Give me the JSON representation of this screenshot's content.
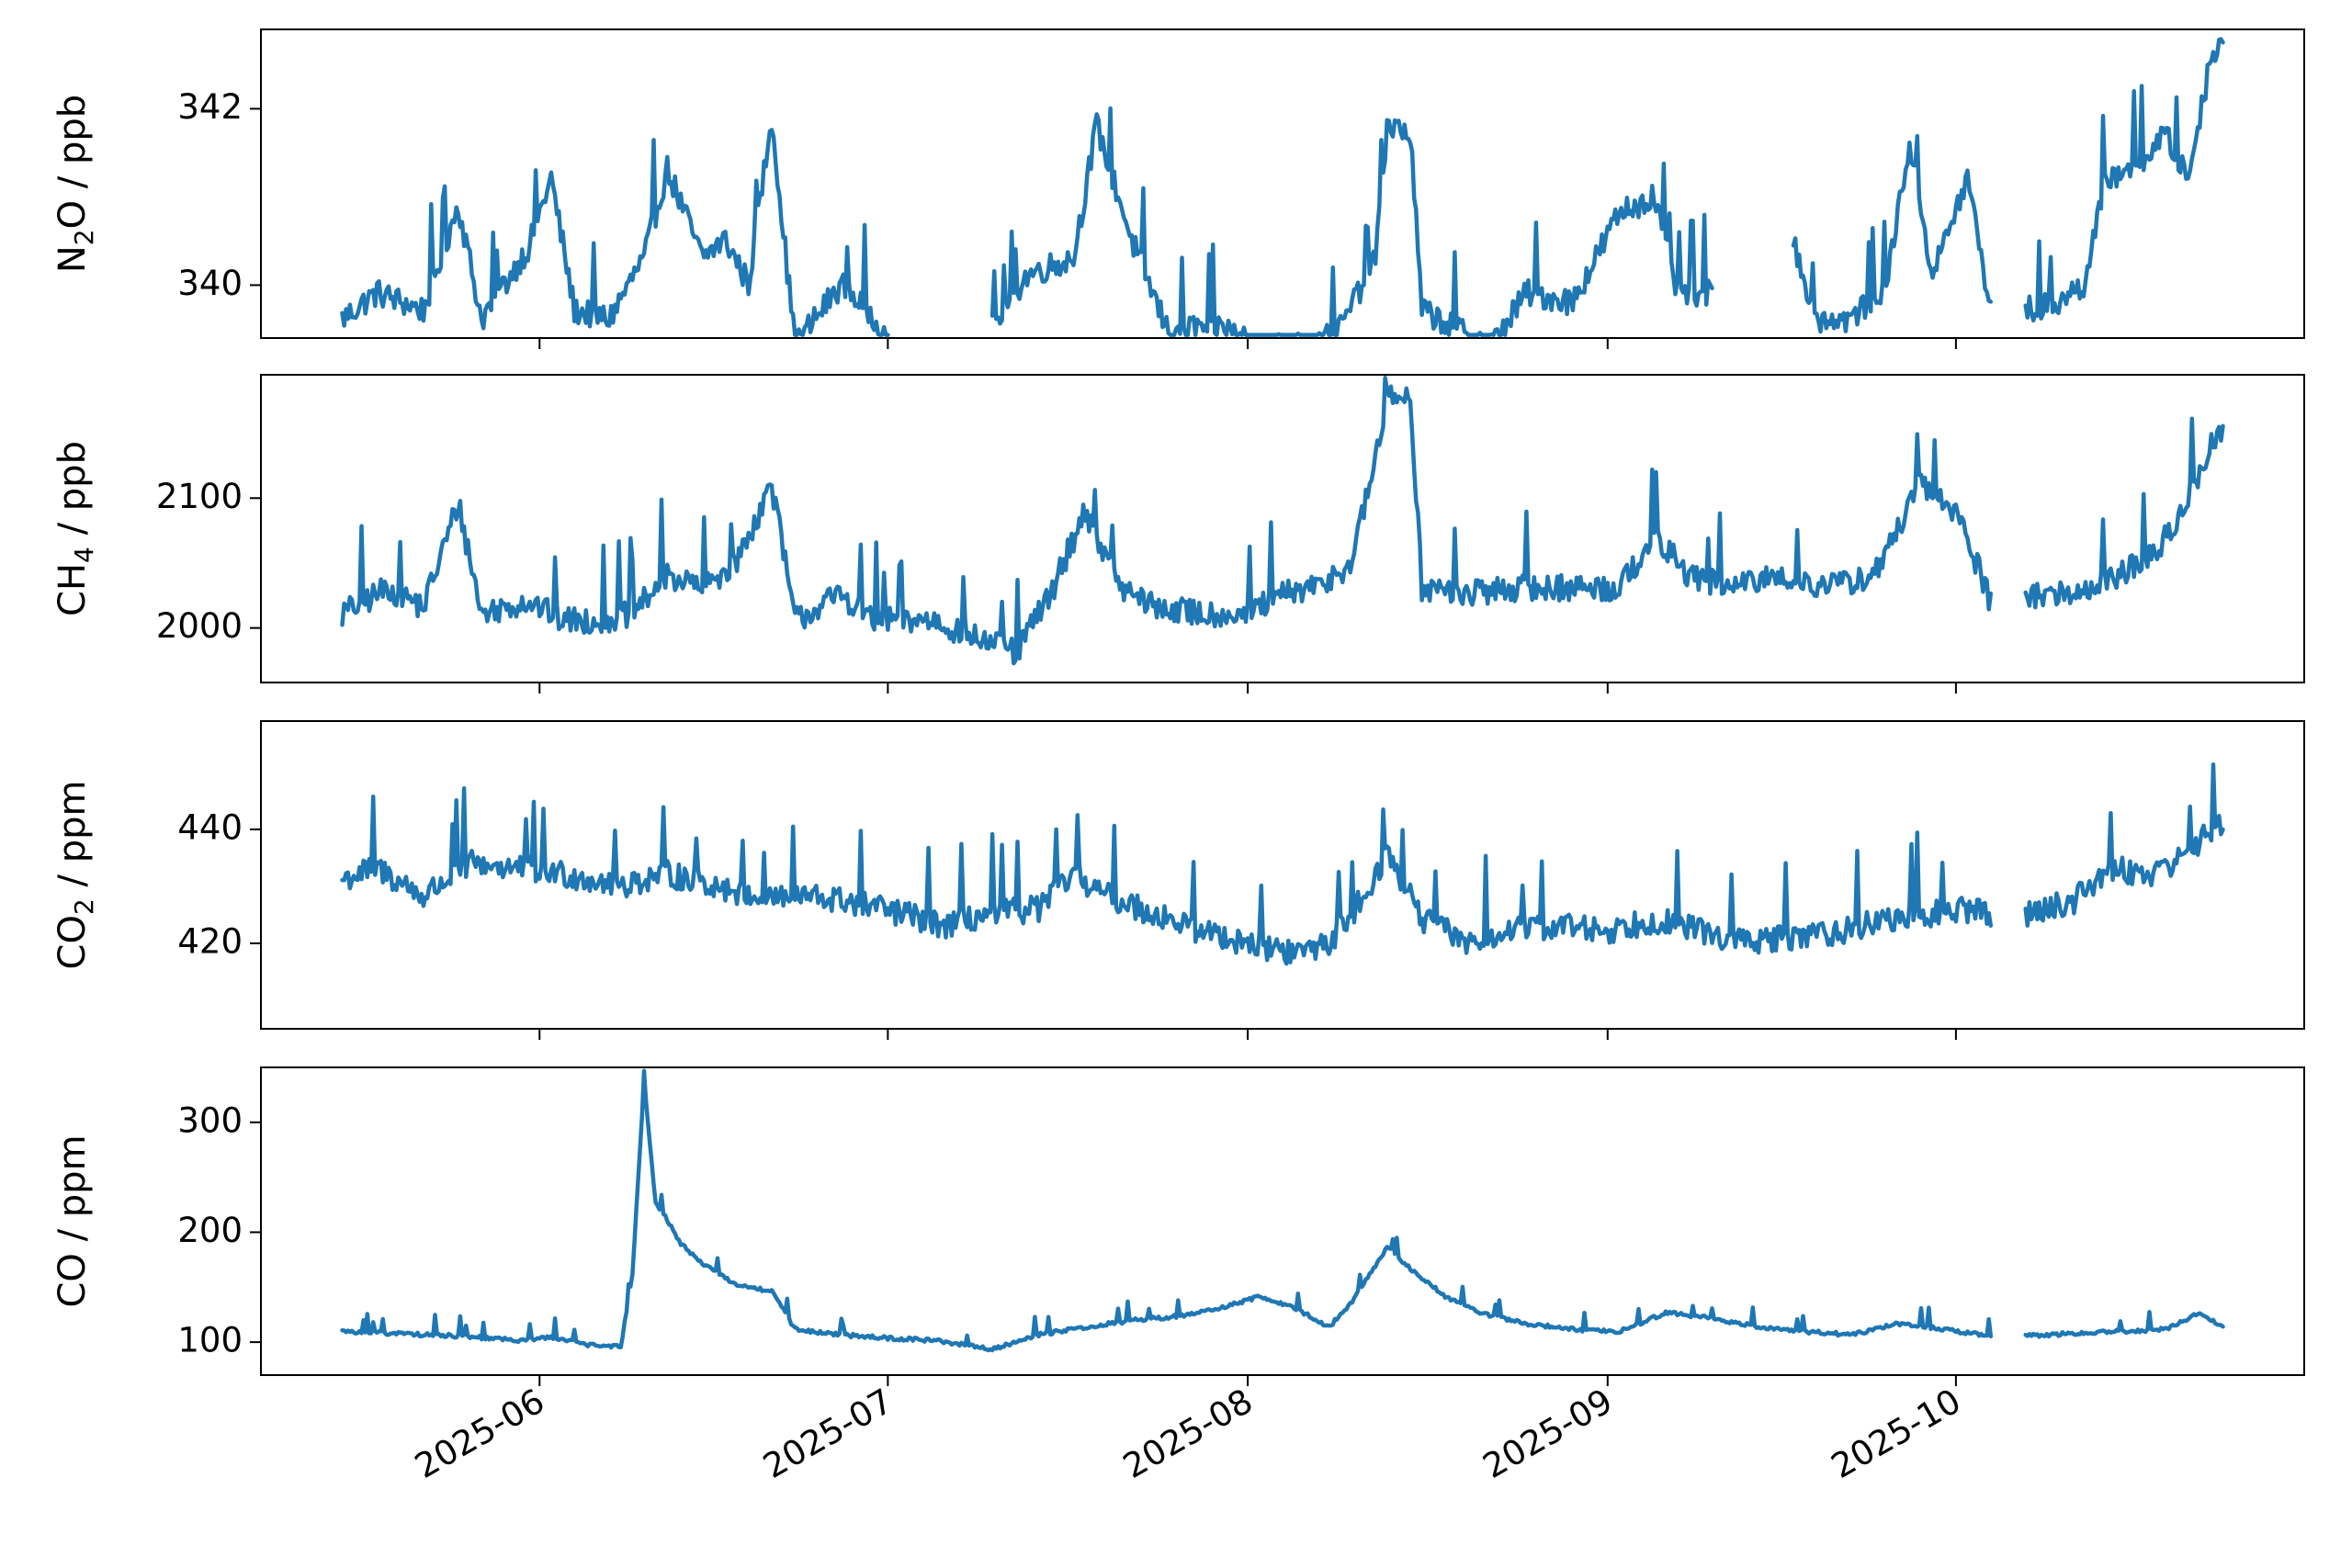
{
  "chart_data": [
    {
      "type": "line",
      "ylabel": {
        "pre": "N",
        "sub": "2",
        "post": "O / ppb"
      },
      "yticks": [
        340,
        342
      ],
      "ylim": [
        339.4,
        342.9
      ],
      "color": "#1f77b4",
      "x_start": "2025-05-15",
      "x_end": "2025-10-24",
      "gaps": [
        [
          "2025-07-01",
          "2025-07-10"
        ],
        [
          "2025-09-10",
          "2025-09-17"
        ],
        [
          "2025-10-04",
          "2025-10-07"
        ]
      ],
      "anchors": [
        [
          "2025-05-15",
          339.6
        ],
        [
          "2025-05-18",
          339.9
        ],
        [
          "2025-05-22",
          339.7
        ],
        [
          "2025-05-25",
          340.9
        ],
        [
          "2025-05-27",
          339.6
        ],
        [
          "2025-05-31",
          340.4
        ],
        [
          "2025-06-02",
          341.2
        ],
        [
          "2025-06-04",
          339.7
        ],
        [
          "2025-06-07",
          339.6
        ],
        [
          "2025-06-10",
          340.3
        ],
        [
          "2025-06-12",
          341.3
        ],
        [
          "2025-06-15",
          340.3
        ],
        [
          "2025-06-17",
          340.5
        ],
        [
          "2025-06-19",
          340.0
        ],
        [
          "2025-06-21",
          341.9
        ],
        [
          "2025-06-23",
          339.3
        ],
        [
          "2025-06-27",
          340.0
        ],
        [
          "2025-06-30",
          339.6
        ],
        [
          "2025-07-01",
          339.3
        ],
        [
          "2025-07-10",
          339.5
        ],
        [
          "2025-07-13",
          340.1
        ],
        [
          "2025-07-17",
          340.3
        ],
        [
          "2025-07-19",
          341.8
        ],
        [
          "2025-07-22",
          340.5
        ],
        [
          "2025-07-25",
          339.5
        ],
        [
          "2025-07-30",
          339.5
        ],
        [
          "2025-08-02",
          339.3
        ],
        [
          "2025-08-06",
          339.3
        ],
        [
          "2025-08-09",
          339.5
        ],
        [
          "2025-08-12",
          340.3
        ],
        [
          "2025-08-13",
          341.8
        ],
        [
          "2025-08-15",
          341.7
        ],
        [
          "2025-08-16",
          339.7
        ],
        [
          "2025-08-19",
          339.5
        ],
        [
          "2025-08-22",
          339.3
        ],
        [
          "2025-08-25",
          339.9
        ],
        [
          "2025-08-29",
          339.8
        ],
        [
          "2025-09-02",
          340.8
        ],
        [
          "2025-09-05",
          341.0
        ],
        [
          "2025-09-07",
          339.9
        ],
        [
          "2025-09-10",
          339.9
        ],
        [
          "2025-09-17",
          340.5
        ],
        [
          "2025-09-19",
          339.6
        ],
        [
          "2025-09-22",
          339.6
        ],
        [
          "2025-09-25",
          340.0
        ],
        [
          "2025-09-27",
          341.6
        ],
        [
          "2025-09-29",
          340.1
        ],
        [
          "2025-10-02",
          341.2
        ],
        [
          "2025-10-04",
          339.7
        ],
        [
          "2025-10-07",
          339.7
        ],
        [
          "2025-10-10",
          339.8
        ],
        [
          "2025-10-12",
          340.0
        ],
        [
          "2025-10-14",
          341.2
        ],
        [
          "2025-10-17",
          341.4
        ],
        [
          "2025-10-19",
          341.7
        ],
        [
          "2025-10-21",
          341.2
        ],
        [
          "2025-10-23",
          342.6
        ],
        [
          "2025-10-24",
          342.8
        ]
      ]
    },
    {
      "type": "line",
      "ylabel": {
        "pre": "CH",
        "sub": "4",
        "post": " / ppb"
      },
      "yticks": [
        2000,
        2100
      ],
      "ylim": [
        1958,
        2195
      ],
      "color": "#1f77b4",
      "x_start": "2025-05-15",
      "x_end": "2025-10-24",
      "gaps": [
        [
          "2025-10-04",
          "2025-10-07"
        ]
      ],
      "anchors": [
        [
          "2025-05-15",
          2010
        ],
        [
          "2025-05-19",
          2030
        ],
        [
          "2025-05-22",
          2015
        ],
        [
          "2025-05-25",
          2095
        ],
        [
          "2025-05-27",
          2010
        ],
        [
          "2025-05-31",
          2020
        ],
        [
          "2025-06-03",
          2005
        ],
        [
          "2025-06-06",
          2005
        ],
        [
          "2025-06-09",
          2010
        ],
        [
          "2025-06-12",
          2040
        ],
        [
          "2025-06-15",
          2030
        ],
        [
          "2025-06-18",
          2050
        ],
        [
          "2025-06-21",
          2110
        ],
        [
          "2025-06-23",
          2005
        ],
        [
          "2025-06-27",
          2025
        ],
        [
          "2025-06-30",
          2005
        ],
        [
          "2025-07-05",
          2005
        ],
        [
          "2025-07-09",
          1990
        ],
        [
          "2025-07-12",
          1980
        ],
        [
          "2025-07-15",
          2025
        ],
        [
          "2025-07-18",
          2090
        ],
        [
          "2025-07-21",
          2030
        ],
        [
          "2025-07-24",
          2015
        ],
        [
          "2025-07-28",
          2010
        ],
        [
          "2025-08-01",
          2010
        ],
        [
          "2025-08-04",
          2025
        ],
        [
          "2025-08-07",
          2030
        ],
        [
          "2025-08-10",
          2050
        ],
        [
          "2025-08-12",
          2130
        ],
        [
          "2025-08-13",
          2175
        ],
        [
          "2025-08-15",
          2180
        ],
        [
          "2025-08-16",
          2030
        ],
        [
          "2025-08-20",
          2025
        ],
        [
          "2025-08-24",
          2030
        ],
        [
          "2025-08-28",
          2030
        ],
        [
          "2025-09-02",
          2030
        ],
        [
          "2025-09-05",
          2070
        ],
        [
          "2025-09-08",
          2040
        ],
        [
          "2025-09-12",
          2030
        ],
        [
          "2025-09-16",
          2040
        ],
        [
          "2025-09-20",
          2030
        ],
        [
          "2025-09-24",
          2040
        ],
        [
          "2025-09-28",
          2110
        ],
        [
          "2025-10-01",
          2090
        ],
        [
          "2025-10-04",
          2020
        ],
        [
          "2025-10-07",
          2025
        ],
        [
          "2025-10-11",
          2025
        ],
        [
          "2025-10-15",
          2040
        ],
        [
          "2025-10-18",
          2055
        ],
        [
          "2025-10-20",
          2080
        ],
        [
          "2025-10-23",
          2140
        ],
        [
          "2025-10-24",
          2150
        ]
      ]
    },
    {
      "type": "line",
      "ylabel": {
        "pre": "CO",
        "sub": "2",
        "post": " / ppm"
      },
      "yticks": [
        420,
        440
      ],
      "ylim": [
        405,
        459
      ],
      "color": "#1f77b4",
      "x_start": "2025-05-15",
      "x_end": "2025-10-24",
      "gaps": [
        [
          "2025-10-04",
          "2025-10-07"
        ]
      ],
      "anchors": [
        [
          "2025-05-15",
          431
        ],
        [
          "2025-05-18",
          433
        ],
        [
          "2025-05-22",
          428
        ],
        [
          "2025-05-26",
          434
        ],
        [
          "2025-05-30",
          433
        ],
        [
          "2025-06-03",
          432
        ],
        [
          "2025-06-08",
          430
        ],
        [
          "2025-06-12",
          432
        ],
        [
          "2025-06-16",
          430
        ],
        [
          "2025-06-20",
          428
        ],
        [
          "2025-06-24",
          428
        ],
        [
          "2025-06-28",
          427
        ],
        [
          "2025-07-02",
          425
        ],
        [
          "2025-07-06",
          423
        ],
        [
          "2025-07-10",
          425
        ],
        [
          "2025-07-14",
          426
        ],
        [
          "2025-07-17",
          432
        ],
        [
          "2025-07-20",
          428
        ],
        [
          "2025-07-24",
          425
        ],
        [
          "2025-07-28",
          422
        ],
        [
          "2025-08-01",
          420
        ],
        [
          "2025-08-05",
          418
        ],
        [
          "2025-08-08",
          420
        ],
        [
          "2025-08-11",
          428
        ],
        [
          "2025-08-13",
          436
        ],
        [
          "2025-08-16",
          424
        ],
        [
          "2025-08-20",
          420
        ],
        [
          "2025-08-24",
          422
        ],
        [
          "2025-08-28",
          423
        ],
        [
          "2025-09-01",
          422
        ],
        [
          "2025-09-05",
          424
        ],
        [
          "2025-09-09",
          422
        ],
        [
          "2025-09-13",
          420
        ],
        [
          "2025-09-17",
          421
        ],
        [
          "2025-09-21",
          422
        ],
        [
          "2025-09-25",
          424
        ],
        [
          "2025-09-29",
          425
        ],
        [
          "2025-10-03",
          426
        ],
        [
          "2025-10-04",
          424
        ],
        [
          "2025-10-07",
          425
        ],
        [
          "2025-10-11",
          427
        ],
        [
          "2025-10-14",
          433
        ],
        [
          "2025-10-18",
          432
        ],
        [
          "2025-10-21",
          436
        ],
        [
          "2025-10-24",
          441
        ]
      ]
    },
    {
      "type": "line",
      "ylabel": {
        "pre": "CO / ppm",
        "sub": "",
        "post": ""
      },
      "yticks": [
        100,
        200,
        300
      ],
      "ylim": [
        70,
        350
      ],
      "color": "#1f77b4",
      "x_start": "2025-05-15",
      "x_end": "2025-10-24",
      "gaps": [
        [
          "2025-10-04",
          "2025-10-07"
        ]
      ],
      "anchors": [
        [
          "2025-05-15",
          108
        ],
        [
          "2025-05-20",
          106
        ],
        [
          "2025-05-25",
          104
        ],
        [
          "2025-05-30",
          100
        ],
        [
          "2025-06-02",
          103
        ],
        [
          "2025-06-05",
          96
        ],
        [
          "2025-06-08",
          94
        ],
        [
          "2025-06-09",
          160
        ],
        [
          "2025-06-10",
          335
        ],
        [
          "2025-06-11",
          225
        ],
        [
          "2025-06-12",
          210
        ],
        [
          "2025-06-13",
          190
        ],
        [
          "2025-06-15",
          170
        ],
        [
          "2025-06-18",
          150
        ],
        [
          "2025-06-21",
          145
        ],
        [
          "2025-06-23",
          110
        ],
        [
          "2025-06-27",
          105
        ],
        [
          "2025-07-01",
          102
        ],
        [
          "2025-07-05",
          100
        ],
        [
          "2025-07-10",
          92
        ],
        [
          "2025-07-14",
          105
        ],
        [
          "2025-07-18",
          112
        ],
        [
          "2025-07-22",
          118
        ],
        [
          "2025-07-26",
          122
        ],
        [
          "2025-07-30",
          130
        ],
        [
          "2025-08-02",
          140
        ],
        [
          "2025-08-05",
          130
        ],
        [
          "2025-08-08",
          112
        ],
        [
          "2025-08-10",
          135
        ],
        [
          "2025-08-13",
          185
        ],
        [
          "2025-08-15",
          165
        ],
        [
          "2025-08-18",
          140
        ],
        [
          "2025-08-21",
          125
        ],
        [
          "2025-08-25",
          115
        ],
        [
          "2025-08-29",
          110
        ],
        [
          "2025-09-02",
          108
        ],
        [
          "2025-09-06",
          125
        ],
        [
          "2025-09-10",
          120
        ],
        [
          "2025-09-14",
          112
        ],
        [
          "2025-09-18",
          108
        ],
        [
          "2025-09-22",
          105
        ],
        [
          "2025-09-26",
          115
        ],
        [
          "2025-09-30",
          110
        ],
        [
          "2025-10-04",
          104
        ],
        [
          "2025-10-07",
          104
        ],
        [
          "2025-10-11",
          106
        ],
        [
          "2025-10-15",
          108
        ],
        [
          "2025-10-19",
          110
        ],
        [
          "2025-10-22",
          125
        ],
        [
          "2025-10-24",
          112
        ]
      ]
    }
  ],
  "x_axis": {
    "ticks": [
      "2025-06-01",
      "2025-07-01",
      "2025-08-01",
      "2025-09-01",
      "2025-10-01"
    ],
    "tick_labels": [
      "2025-06",
      "2025-07",
      "2025-08",
      "2025-09",
      "2025-10"
    ],
    "xlim": [
      "2025-05-08",
      "2025-10-31"
    ]
  }
}
